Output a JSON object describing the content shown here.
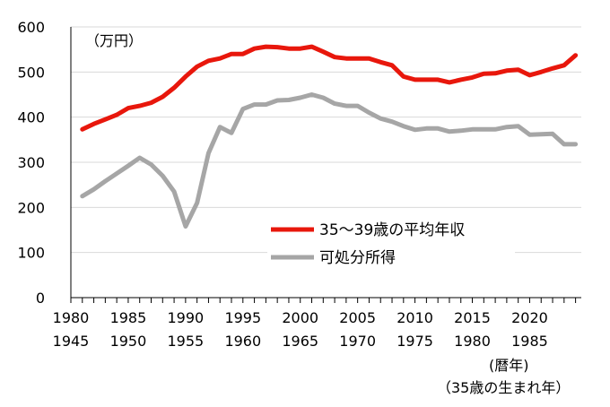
{
  "chart_data": {
    "type": "line",
    "unit_label": "（万円）",
    "ylim": [
      0,
      600
    ],
    "yticks": [
      0,
      100,
      200,
      300,
      400,
      500,
      600
    ],
    "xlim": [
      1980,
      2024
    ],
    "xticks": [
      {
        "year": 1980,
        "birth": 1945
      },
      {
        "year": 1985,
        "birth": 1950
      },
      {
        "year": 1990,
        "birth": 1955
      },
      {
        "year": 1995,
        "birth": 1960
      },
      {
        "year": 2000,
        "birth": 1965
      },
      {
        "year": 2005,
        "birth": 1970
      },
      {
        "year": 2010,
        "birth": 1975
      },
      {
        "year": 2015,
        "birth": 1980
      },
      {
        "year": 2020,
        "birth": 1985
      }
    ],
    "x_caption_1": "(暦年)",
    "x_caption_2": "（35歳の生まれ年）",
    "grid": "horizontal",
    "legend_position": "center-right",
    "series": [
      {
        "name": "35～39歳の平均年収",
        "color": "#e8170c",
        "x": [
          1981,
          1982,
          1983,
          1984,
          1985,
          1986,
          1987,
          1988,
          1989,
          1990,
          1991,
          1992,
          1993,
          1994,
          1995,
          1996,
          1997,
          1998,
          1999,
          2000,
          2001,
          2002,
          2003,
          2004,
          2005,
          2006,
          2007,
          2008,
          2009,
          2010,
          2011,
          2012,
          2013,
          2014,
          2015,
          2016,
          2017,
          2018,
          2019,
          2020,
          2021,
          2022,
          2023,
          2024
        ],
        "values": [
          373,
          385,
          395,
          405,
          420,
          425,
          432,
          445,
          465,
          490,
          512,
          525,
          530,
          540,
          540,
          552,
          556,
          555,
          552,
          552,
          556,
          545,
          533,
          530,
          530,
          530,
          522,
          515,
          490,
          483,
          483,
          483,
          477,
          483,
          488,
          496,
          497,
          503,
          505,
          493,
          500,
          508,
          515,
          537
        ]
      },
      {
        "name": "可処分所得",
        "color": "#a6a6a6",
        "x": [
          1981,
          1982,
          1983,
          1984,
          1985,
          1986,
          1987,
          1988,
          1989,
          1990,
          1991,
          1992,
          1993,
          1994,
          1995,
          1996,
          1997,
          1998,
          1999,
          2000,
          2001,
          2002,
          2003,
          2004,
          2005,
          2006,
          2007,
          2008,
          2009,
          2010,
          2011,
          2012,
          2013,
          2014,
          2015,
          2016,
          2017,
          2018,
          2019,
          2020,
          2021,
          2022,
          2023,
          2024
        ],
        "values": [
          225,
          240,
          258,
          275,
          292,
          310,
          295,
          270,
          235,
          158,
          210,
          320,
          378,
          365,
          418,
          428,
          428,
          437,
          438,
          443,
          450,
          443,
          430,
          425,
          425,
          410,
          397,
          390,
          380,
          372,
          375,
          375,
          368,
          370,
          373,
          373,
          373,
          378,
          380,
          361,
          362,
          363,
          340,
          340
        ]
      }
    ]
  }
}
